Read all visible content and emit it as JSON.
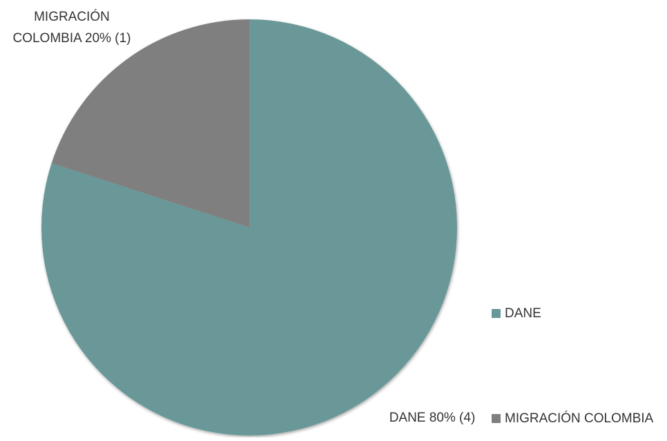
{
  "chart_data": {
    "type": "pie",
    "slices": [
      {
        "label": "DANE",
        "value": 80,
        "count": 4,
        "color": "#6a9898",
        "data_label": "DANE 80% (4)"
      },
      {
        "label": "MIGRACIÓN COLOMBIA",
        "value": 20,
        "count": 1,
        "color": "#7f7f7f",
        "data_label_lines": [
          "MIGRACIÓN",
          "COLOMBIA 20% (1)"
        ]
      }
    ],
    "start_angle_deg": 0,
    "direction": "clockwise",
    "legend": {
      "position": "right",
      "items": [
        "DANE",
        "MIGRACIÓN COLOMBIA"
      ]
    }
  }
}
